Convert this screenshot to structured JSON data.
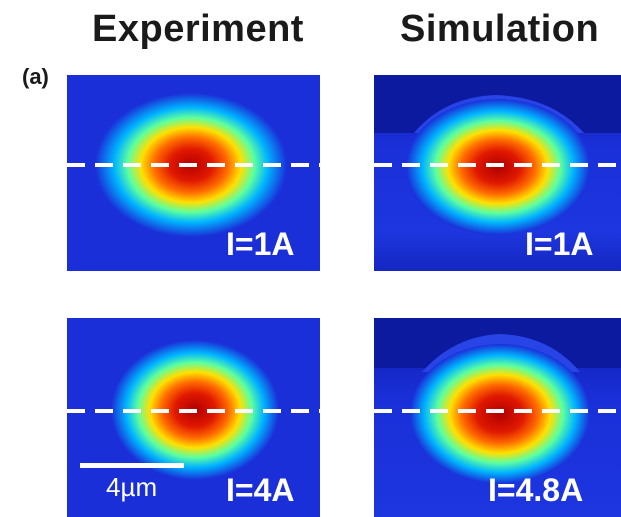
{
  "columns": {
    "experiment": "Experiment",
    "simulation": "Simulation"
  },
  "panel_label": "(a)",
  "panels": {
    "exp_top": {
      "current": "I=1A"
    },
    "sim_top": {
      "current": "I=1A"
    },
    "exp_bottom": {
      "current": "I=4A"
    },
    "sim_bottom": {
      "current": "I=4.8A"
    }
  },
  "scale_bar": {
    "label": "4µm"
  },
  "colors": {
    "background_blue": "#1a2fd8",
    "dashed_line": "#ffffff",
    "hot_core": "#c80000"
  }
}
